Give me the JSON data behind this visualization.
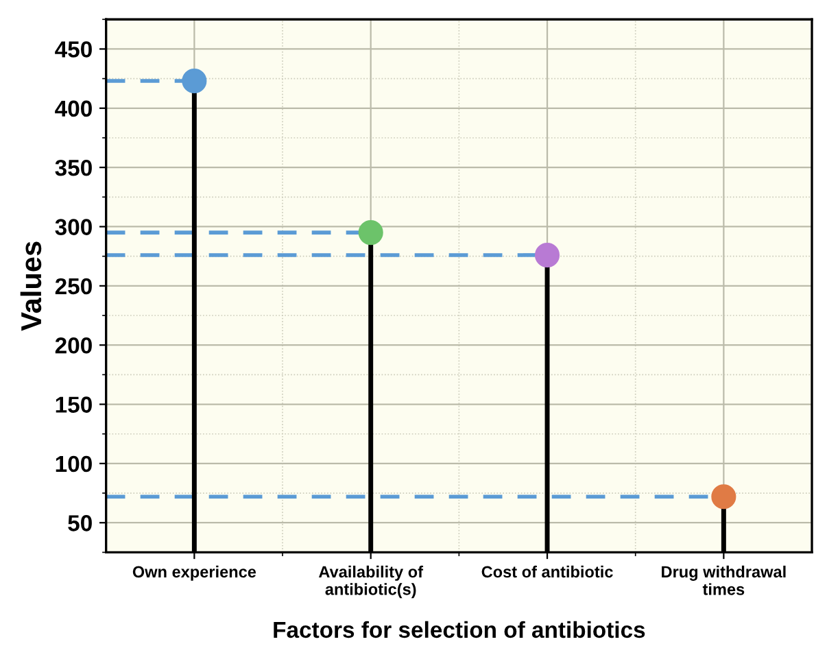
{
  "chart_data": {
    "type": "lollipop",
    "xlabel": "Factors for selection of antibiotics",
    "ylabel": "Values",
    "categories": [
      "Own experience",
      "Availability of\nantibiotic(s)",
      "Cost of antibiotic",
      "Drug withdrawal\ntimes"
    ],
    "values": [
      423,
      295,
      276,
      72
    ],
    "colors": [
      "#5b9bd5",
      "#6cc36a",
      "#b87ad4",
      "#e07b45"
    ],
    "ylim": [
      25,
      475
    ],
    "yticks": [
      50,
      100,
      150,
      200,
      250,
      300,
      350,
      400,
      450
    ],
    "grid": true,
    "marker": "circle",
    "ref_lines": [
      {
        "axis": "y",
        "value": 423,
        "color": "#5b9bd5",
        "line_style": "dashed"
      },
      {
        "axis": "y",
        "value": 295,
        "color": "#5b9bd5",
        "line_style": "dashed"
      },
      {
        "axis": "y",
        "value": 276,
        "color": "#5b9bd5",
        "line_style": "dashed"
      },
      {
        "axis": "y",
        "value": 72,
        "color": "#5b9bd5",
        "line_style": "dashed"
      }
    ]
  }
}
